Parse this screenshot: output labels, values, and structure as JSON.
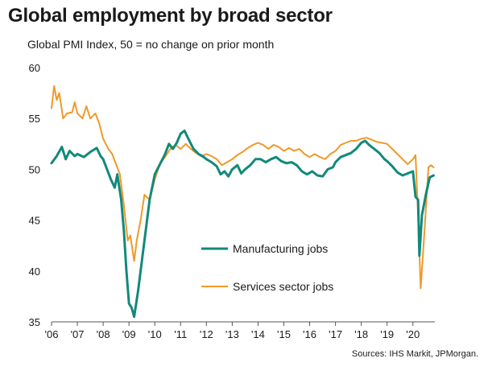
{
  "title": "Global employment by broad sector",
  "subtitle": "Global  PMI Index, 50 = no change on prior month",
  "source": "Sources: IHS Markit, JPMorgan.",
  "chart_data": {
    "type": "line",
    "title": "Global employment by broad sector",
    "subtitle": "Global  PMI Index, 50 = no change on prior month",
    "ylim": [
      35,
      60
    ],
    "yticks": [
      35,
      40,
      45,
      50,
      55,
      60
    ],
    "xlim": [
      2006.0,
      2020.85
    ],
    "xticks": [
      {
        "label": "'06",
        "value": 2006
      },
      {
        "label": "'07",
        "value": 2007
      },
      {
        "label": "'08",
        "value": 2008
      },
      {
        "label": "'09",
        "value": 2009
      },
      {
        "label": "'10",
        "value": 2010
      },
      {
        "label": "'11",
        "value": 2011
      },
      {
        "label": "'12",
        "value": 2012
      },
      {
        "label": "'13",
        "value": 2013
      },
      {
        "label": "'14",
        "value": 2014
      },
      {
        "label": "'15",
        "value": 2015
      },
      {
        "label": "'16",
        "value": 2016
      },
      {
        "label": "'17",
        "value": 2017
      },
      {
        "label": "'18",
        "value": 2018
      },
      {
        "label": "'19",
        "value": 2019
      },
      {
        "label": "'20",
        "value": 2020
      }
    ],
    "grid": false,
    "legend": "center",
    "series": [
      {
        "name": "Manufacturing jobs",
        "color": "#12897a",
        "points": [
          [
            2006.0,
            50.6
          ],
          [
            2006.2,
            51.3
          ],
          [
            2006.4,
            52.2
          ],
          [
            2006.55,
            51.0
          ],
          [
            2006.7,
            51.8
          ],
          [
            2006.9,
            51.3
          ],
          [
            2007.0,
            51.5
          ],
          [
            2007.25,
            51.2
          ],
          [
            2007.5,
            51.7
          ],
          [
            2007.75,
            52.1
          ],
          [
            2007.9,
            51.3
          ],
          [
            2008.0,
            51.0
          ],
          [
            2008.15,
            50.0
          ],
          [
            2008.3,
            49.0
          ],
          [
            2008.45,
            48.2
          ],
          [
            2008.55,
            49.5
          ],
          [
            2008.7,
            47.0
          ],
          [
            2008.8,
            44.0
          ],
          [
            2008.9,
            40.0
          ],
          [
            2009.0,
            36.8
          ],
          [
            2009.1,
            36.4
          ],
          [
            2009.2,
            35.5
          ],
          [
            2009.35,
            38.0
          ],
          [
            2009.5,
            41.0
          ],
          [
            2009.65,
            44.0
          ],
          [
            2009.8,
            47.0
          ],
          [
            2010.0,
            49.5
          ],
          [
            2010.2,
            50.5
          ],
          [
            2010.4,
            51.5
          ],
          [
            2010.55,
            52.5
          ],
          [
            2010.7,
            52.0
          ],
          [
            2010.85,
            52.6
          ],
          [
            2011.0,
            53.5
          ],
          [
            2011.15,
            53.8
          ],
          [
            2011.3,
            53.0
          ],
          [
            2011.5,
            52.0
          ],
          [
            2011.7,
            51.5
          ],
          [
            2011.9,
            51.2
          ],
          [
            2012.0,
            51.0
          ],
          [
            2012.2,
            50.7
          ],
          [
            2012.4,
            50.3
          ],
          [
            2012.55,
            49.5
          ],
          [
            2012.7,
            49.8
          ],
          [
            2012.85,
            49.3
          ],
          [
            2013.0,
            50.0
          ],
          [
            2013.2,
            50.4
          ],
          [
            2013.35,
            49.6
          ],
          [
            2013.5,
            50.0
          ],
          [
            2013.7,
            50.4
          ],
          [
            2013.9,
            51.0
          ],
          [
            2014.1,
            51.0
          ],
          [
            2014.3,
            50.7
          ],
          [
            2014.5,
            51.0
          ],
          [
            2014.7,
            51.2
          ],
          [
            2014.9,
            50.8
          ],
          [
            2015.1,
            50.6
          ],
          [
            2015.3,
            50.7
          ],
          [
            2015.5,
            50.4
          ],
          [
            2015.7,
            49.8
          ],
          [
            2015.9,
            49.5
          ],
          [
            2016.1,
            49.8
          ],
          [
            2016.3,
            49.4
          ],
          [
            2016.5,
            49.3
          ],
          [
            2016.7,
            50.0
          ],
          [
            2016.9,
            50.2
          ],
          [
            2017.0,
            50.7
          ],
          [
            2017.2,
            51.2
          ],
          [
            2017.4,
            51.4
          ],
          [
            2017.6,
            51.6
          ],
          [
            2017.8,
            52.0
          ],
          [
            2018.0,
            52.6
          ],
          [
            2018.15,
            52.8
          ],
          [
            2018.3,
            52.4
          ],
          [
            2018.5,
            52.0
          ],
          [
            2018.7,
            51.6
          ],
          [
            2018.9,
            51.0
          ],
          [
            2019.0,
            50.8
          ],
          [
            2019.2,
            50.3
          ],
          [
            2019.4,
            49.7
          ],
          [
            2019.6,
            49.4
          ],
          [
            2019.8,
            49.6
          ],
          [
            2020.0,
            49.8
          ],
          [
            2020.1,
            47.3
          ],
          [
            2020.2,
            47.0
          ],
          [
            2020.25,
            41.5
          ],
          [
            2020.35,
            45.5
          ],
          [
            2020.5,
            47.5
          ],
          [
            2020.65,
            49.2
          ],
          [
            2020.8,
            49.4
          ]
        ]
      },
      {
        "name": "Services sector jobs",
        "color": "#f0992a",
        "points": [
          [
            2006.0,
            56.0
          ],
          [
            2006.1,
            58.2
          ],
          [
            2006.2,
            56.8
          ],
          [
            2006.3,
            57.5
          ],
          [
            2006.45,
            55.0
          ],
          [
            2006.6,
            55.5
          ],
          [
            2006.8,
            55.6
          ],
          [
            2006.9,
            56.6
          ],
          [
            2007.0,
            55.5
          ],
          [
            2007.2,
            55.0
          ],
          [
            2007.35,
            56.2
          ],
          [
            2007.5,
            55.0
          ],
          [
            2007.7,
            55.5
          ],
          [
            2007.85,
            54.5
          ],
          [
            2008.0,
            53.0
          ],
          [
            2008.2,
            52.0
          ],
          [
            2008.35,
            51.5
          ],
          [
            2008.5,
            50.5
          ],
          [
            2008.65,
            49.5
          ],
          [
            2008.8,
            46.5
          ],
          [
            2008.95,
            43.0
          ],
          [
            2009.05,
            43.5
          ],
          [
            2009.2,
            41.0
          ],
          [
            2009.3,
            43.0
          ],
          [
            2009.45,
            45.0
          ],
          [
            2009.6,
            47.5
          ],
          [
            2009.8,
            47.0
          ],
          [
            2010.0,
            49.0
          ],
          [
            2010.2,
            50.5
          ],
          [
            2010.4,
            51.2
          ],
          [
            2010.6,
            52.0
          ],
          [
            2010.8,
            52.4
          ],
          [
            2011.0,
            52.0
          ],
          [
            2011.2,
            52.5
          ],
          [
            2011.4,
            52.0
          ],
          [
            2011.6,
            51.6
          ],
          [
            2011.8,
            51.3
          ],
          [
            2012.0,
            51.5
          ],
          [
            2012.2,
            51.3
          ],
          [
            2012.4,
            51.0
          ],
          [
            2012.6,
            50.4
          ],
          [
            2012.8,
            50.7
          ],
          [
            2013.0,
            51.0
          ],
          [
            2013.2,
            51.4
          ],
          [
            2013.4,
            51.7
          ],
          [
            2013.6,
            52.1
          ],
          [
            2013.8,
            52.4
          ],
          [
            2014.0,
            52.6
          ],
          [
            2014.2,
            52.4
          ],
          [
            2014.4,
            52.0
          ],
          [
            2014.6,
            52.4
          ],
          [
            2014.8,
            52.2
          ],
          [
            2015.0,
            51.8
          ],
          [
            2015.2,
            52.1
          ],
          [
            2015.4,
            51.8
          ],
          [
            2015.6,
            52.0
          ],
          [
            2015.8,
            51.5
          ],
          [
            2016.0,
            51.2
          ],
          [
            2016.2,
            51.5
          ],
          [
            2016.4,
            51.2
          ],
          [
            2016.6,
            51.0
          ],
          [
            2016.8,
            51.5
          ],
          [
            2017.0,
            51.8
          ],
          [
            2017.2,
            52.4
          ],
          [
            2017.4,
            52.6
          ],
          [
            2017.6,
            52.8
          ],
          [
            2017.8,
            52.8
          ],
          [
            2018.0,
            53.0
          ],
          [
            2018.2,
            53.1
          ],
          [
            2018.4,
            52.9
          ],
          [
            2018.6,
            52.7
          ],
          [
            2018.8,
            52.6
          ],
          [
            2019.0,
            52.5
          ],
          [
            2019.2,
            52.0
          ],
          [
            2019.4,
            51.5
          ],
          [
            2019.6,
            51.0
          ],
          [
            2019.8,
            50.5
          ],
          [
            2020.0,
            51.0
          ],
          [
            2020.1,
            51.4
          ],
          [
            2020.2,
            45.5
          ],
          [
            2020.3,
            38.3
          ],
          [
            2020.45,
            44.0
          ],
          [
            2020.6,
            50.2
          ],
          [
            2020.7,
            50.4
          ],
          [
            2020.8,
            50.2
          ]
        ]
      }
    ]
  }
}
